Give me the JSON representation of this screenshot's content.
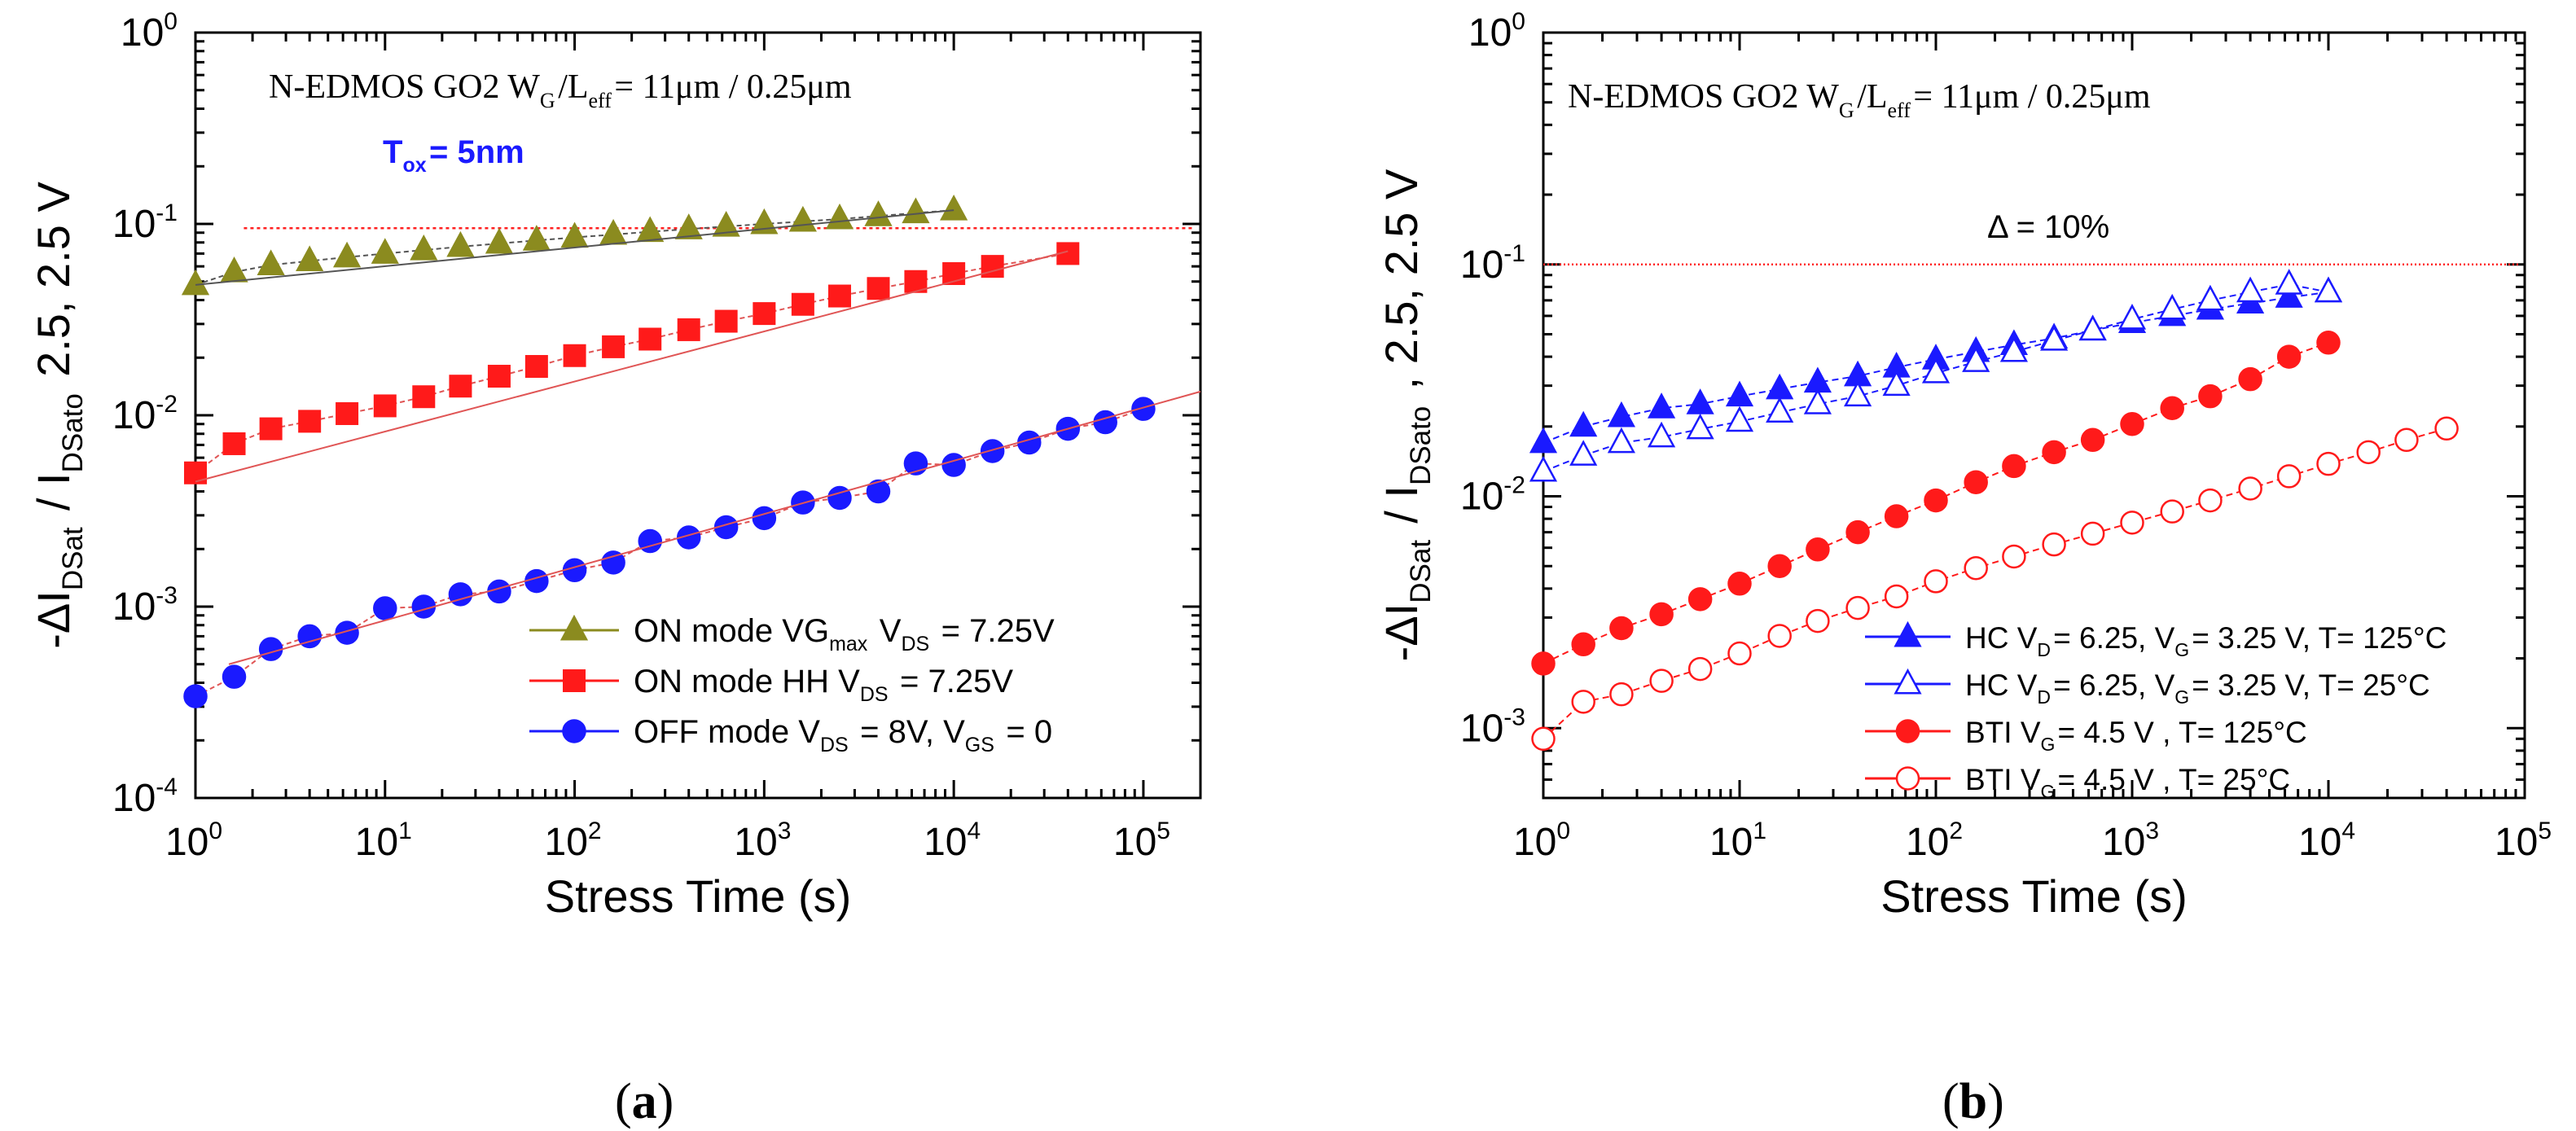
{
  "chart_data": [
    {
      "type": "scatter",
      "panel_label": "a",
      "title": "N-EDMOS GO2 W_G/L_eff= 11μm / 0.25μm",
      "annotation": "T_ox=  5nm",
      "xlabel": "Stress Time (s)",
      "ylabel": "-ΔI_DSat / I_DSato   2.5, 2.5 V",
      "xscale": "log",
      "yscale": "log",
      "xlim": [
        1,
        200000
      ],
      "ylim": [
        0.0001,
        1
      ],
      "x_tick_labels": [
        "10^0",
        "10^1",
        "10^2",
        "10^3",
        "10^4",
        "10^5"
      ],
      "y_tick_labels": [
        "10^-4",
        "10^-3",
        "10^-2",
        "10^-1",
        "10^0"
      ],
      "reference_line": {
        "y": 0.095,
        "label": ""
      },
      "legend_position": "bottom-right",
      "series": [
        {
          "name": "ON mode VG_max   V_DS = 7.25V",
          "marker": "triangle-filled",
          "color": "#8b8b1f",
          "fit_color": "#555555",
          "x": [
            1,
            1.6,
            2.5,
            4,
            6.3,
            10,
            16,
            25,
            40,
            63,
            100,
            160,
            250,
            400,
            630,
            1000,
            1600,
            2500,
            4000,
            6300,
            10000
          ],
          "y": [
            0.048,
            0.056,
            0.061,
            0.064,
            0.067,
            0.07,
            0.073,
            0.076,
            0.079,
            0.082,
            0.085,
            0.088,
            0.091,
            0.094,
            0.097,
            0.1,
            0.103,
            0.106,
            0.11,
            0.114,
            0.118
          ]
        },
        {
          "name": "ON mode HH V_DS = 7.25V",
          "marker": "square-filled",
          "color": "#ff1a1a",
          "fit_color": "#e05555",
          "x": [
            1,
            1.6,
            2.5,
            4,
            6.3,
            10,
            16,
            25,
            40,
            63,
            100,
            160,
            250,
            400,
            630,
            1000,
            1600,
            2500,
            4000,
            6300,
            10000,
            16000,
            40000
          ],
          "y": [
            0.005,
            0.0071,
            0.0085,
            0.0093,
            0.0102,
            0.0112,
            0.0125,
            0.0142,
            0.016,
            0.018,
            0.0205,
            0.0228,
            0.025,
            0.028,
            0.031,
            0.034,
            0.038,
            0.042,
            0.046,
            0.05,
            0.055,
            0.06,
            0.07
          ]
        },
        {
          "name": "OFF mode V_DS = 8V, V_GS = 0",
          "marker": "circle-filled",
          "color": "#1a1aff",
          "fit_color": "#e05555",
          "x": [
            1,
            1.6,
            2.5,
            4,
            6.3,
            10,
            16,
            25,
            40,
            63,
            100,
            160,
            250,
            400,
            630,
            1000,
            1600,
            2500,
            4000,
            6300,
            10000,
            16000,
            25000,
            40000,
            63000,
            100000
          ],
          "y": [
            0.00034,
            0.00043,
            0.0006,
            0.0007,
            0.00073,
            0.00098,
            0.001,
            0.00116,
            0.0012,
            0.00136,
            0.00155,
            0.0017,
            0.0022,
            0.0023,
            0.0026,
            0.0029,
            0.0035,
            0.0037,
            0.004,
            0.0056,
            0.0055,
            0.0065,
            0.0072,
            0.0085,
            0.0092,
            0.0108
          ]
        }
      ]
    },
    {
      "type": "scatter",
      "panel_label": "b",
      "title": "N-EDMOS GO2 W_G/L_eff= 11μm / 0.25μm",
      "annotation": "Δ = 10%",
      "xlabel": "Stress Time (s)",
      "ylabel": "-ΔI_DSat / I_DSato , 2.5, 2.5 V",
      "xscale": "log",
      "yscale": "log",
      "xlim": [
        1,
        100000
      ],
      "ylim": [
        0.0005,
        1
      ],
      "x_tick_labels": [
        "10^0",
        "10^1",
        "10^2",
        "10^3",
        "10^4",
        "10^5"
      ],
      "y_tick_labels": [
        "10^-3",
        "10^-2",
        "10^-1",
        "10^0"
      ],
      "reference_line": {
        "y": 0.1,
        "label": "Δ = 10%"
      },
      "legend_position": "bottom-right",
      "series": [
        {
          "name": "HC V_D= 6.25, V_G= 3.25 V, T= 125°C",
          "marker": "triangle-filled",
          "color": "#1a1aff",
          "x": [
            1,
            1.6,
            2.5,
            4,
            6.3,
            10,
            16,
            25,
            40,
            63,
            100,
            160,
            250,
            400,
            630,
            1000,
            1600,
            2500,
            4000,
            6300,
            10000
          ],
          "y": [
            0.017,
            0.02,
            0.022,
            0.024,
            0.025,
            0.027,
            0.029,
            0.031,
            0.033,
            0.036,
            0.039,
            0.042,
            0.045,
            0.048,
            0.052,
            0.056,
            0.06,
            0.064,
            0.068,
            0.072,
            0.076
          ]
        },
        {
          "name": "HC V_D= 6.25, V_G= 3.25 V, T=  25°C",
          "marker": "triangle-open",
          "color": "#1a1aff",
          "x": [
            1,
            1.6,
            2.5,
            4,
            6.3,
            10,
            16,
            25,
            40,
            63,
            100,
            160,
            250,
            400,
            630,
            1000,
            1600,
            2500,
            4000,
            6300,
            10000
          ],
          "y": [
            0.0128,
            0.015,
            0.017,
            0.018,
            0.0195,
            0.021,
            0.023,
            0.025,
            0.027,
            0.03,
            0.034,
            0.038,
            0.042,
            0.047,
            0.052,
            0.058,
            0.064,
            0.07,
            0.076,
            0.082,
            0.076
          ]
        },
        {
          "name": "BTI V_G= 4.5 V , T= 125°C",
          "marker": "circle-filled",
          "color": "#ff1a1a",
          "x": [
            1,
            1.6,
            2.5,
            4,
            6.3,
            10,
            16,
            25,
            40,
            63,
            100,
            160,
            250,
            400,
            630,
            1000,
            1600,
            2500,
            4000,
            6300,
            10000
          ],
          "y": [
            0.0019,
            0.0023,
            0.0027,
            0.0031,
            0.0036,
            0.0042,
            0.005,
            0.0059,
            0.007,
            0.0082,
            0.0096,
            0.0115,
            0.0135,
            0.0155,
            0.0175,
            0.0205,
            0.024,
            0.027,
            0.032,
            0.04,
            0.046
          ]
        },
        {
          "name": "BTI V_G= 4.5 V , T=  25°C",
          "marker": "circle-open",
          "color": "#ff1a1a",
          "x": [
            1,
            1.6,
            2.5,
            4,
            6.3,
            10,
            16,
            25,
            40,
            63,
            100,
            160,
            250,
            400,
            630,
            1000,
            1600,
            2500,
            4000,
            6300,
            10000,
            16000,
            25000,
            40000
          ],
          "y": [
            0.0009,
            0.0013,
            0.0014,
            0.0016,
            0.0018,
            0.0021,
            0.0025,
            0.0029,
            0.0033,
            0.0037,
            0.0043,
            0.0049,
            0.0055,
            0.0062,
            0.0069,
            0.0077,
            0.0086,
            0.0096,
            0.0108,
            0.0122,
            0.0138,
            0.0155,
            0.0175,
            0.0196
          ]
        }
      ]
    }
  ]
}
